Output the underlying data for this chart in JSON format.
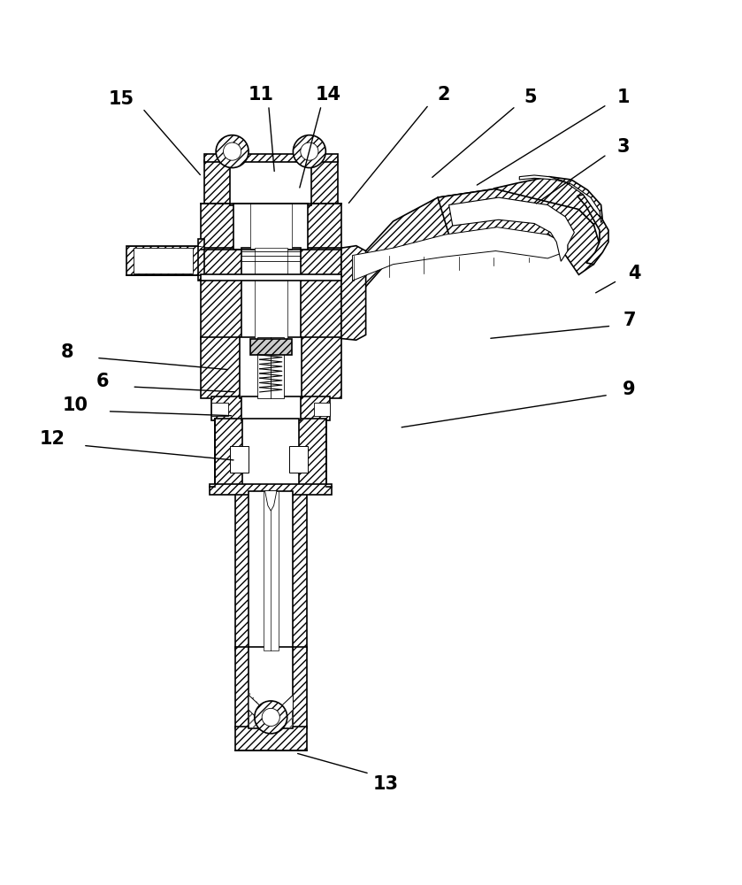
{
  "background_color": "#ffffff",
  "figure_width": 8.39,
  "figure_height": 10.0,
  "dpi": 100,
  "font_size": 15,
  "font_weight": "bold",
  "line_color": "#000000",
  "text_color": "#000000",
  "hatch_color": "#555555",
  "label_data": {
    "1": [
      0.84,
      0.965,
      0.818,
      0.955,
      0.64,
      0.845
    ],
    "2": [
      0.598,
      0.968,
      0.578,
      0.955,
      0.468,
      0.82
    ],
    "3": [
      0.84,
      0.898,
      0.818,
      0.888,
      0.72,
      0.82
    ],
    "4": [
      0.855,
      0.728,
      0.832,
      0.718,
      0.8,
      0.7
    ],
    "5": [
      0.715,
      0.965,
      0.695,
      0.953,
      0.58,
      0.855
    ],
    "6": [
      0.138,
      0.582,
      0.178,
      0.575,
      0.32,
      0.568
    ],
    "7": [
      0.848,
      0.665,
      0.824,
      0.657,
      0.658,
      0.64
    ],
    "8": [
      0.09,
      0.622,
      0.13,
      0.614,
      0.31,
      0.598
    ],
    "9": [
      0.848,
      0.572,
      0.82,
      0.564,
      0.538,
      0.52
    ],
    "10": [
      0.102,
      0.55,
      0.145,
      0.542,
      0.315,
      0.536
    ],
    "11": [
      0.352,
      0.968,
      0.362,
      0.954,
      0.37,
      0.862
    ],
    "12": [
      0.07,
      0.505,
      0.112,
      0.496,
      0.318,
      0.476
    ],
    "13": [
      0.52,
      0.04,
      0.498,
      0.054,
      0.398,
      0.082
    ],
    "14": [
      0.442,
      0.968,
      0.433,
      0.954,
      0.403,
      0.84
    ],
    "15": [
      0.164,
      0.962,
      0.192,
      0.95,
      0.272,
      0.858
    ]
  }
}
